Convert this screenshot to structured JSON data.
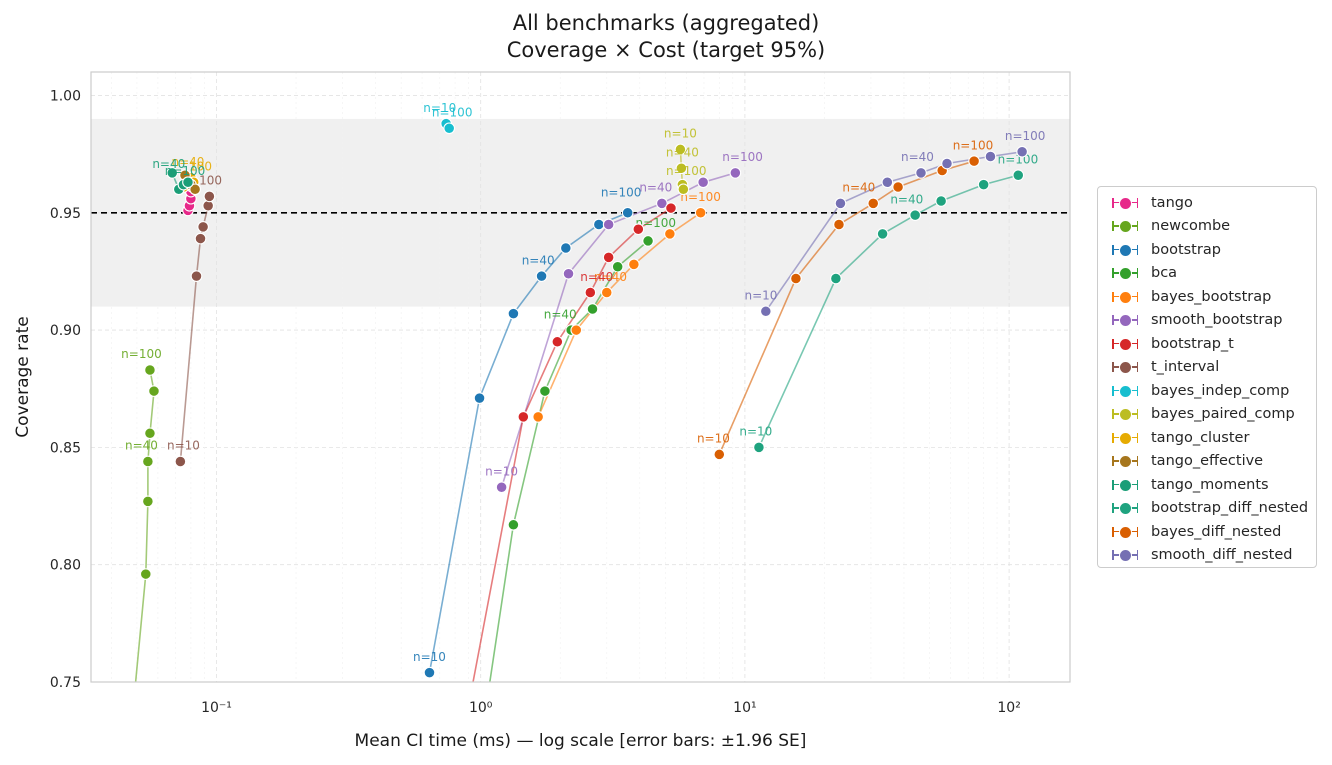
{
  "chart_data": {
    "type": "scatter",
    "title_line1": "All benchmarks (aggregated)",
    "title_line2": "Coverage × Cost (target 95%)",
    "xlabel": "Mean CI time (ms) — log scale  [error bars: ±1.96 SE]",
    "ylabel": "Coverage rate",
    "xscale": "log",
    "xlim": [
      0.0335,
      170
    ],
    "ylim": [
      0.75,
      1.01
    ],
    "x_ticks": [
      {
        "v": 0.1,
        "label": "10⁻¹"
      },
      {
        "v": 1,
        "label": "10⁰"
      },
      {
        "v": 10,
        "label": "10¹"
      },
      {
        "v": 100,
        "label": "10²"
      }
    ],
    "y_ticks": [
      0.75,
      0.8,
      0.85,
      0.9,
      0.95,
      1.0
    ],
    "y_tick_labels": [
      "0.75",
      "0.80",
      "0.85",
      "0.90",
      "0.95",
      "1.00"
    ],
    "target_line": 0.95,
    "band": [
      0.91,
      0.99
    ],
    "grid": true,
    "legend_position": "right",
    "series": [
      {
        "name": "tango",
        "color": "#e7298a",
        "points": [
          [
            0.078,
            0.951
          ],
          [
            0.079,
            0.953
          ],
          [
            0.08,
            0.956
          ],
          [
            0.08,
            0.959
          ],
          [
            0.081,
            0.961
          ]
        ],
        "labels": []
      },
      {
        "name": "newcombe",
        "color": "#66a61e",
        "points": [
          [
            0.048,
            0.735
          ],
          [
            0.054,
            0.796
          ],
          [
            0.055,
            0.827
          ],
          [
            0.055,
            0.844
          ],
          [
            0.056,
            0.856
          ],
          [
            0.058,
            0.874
          ],
          [
            0.056,
            0.883
          ]
        ],
        "labels": [
          {
            "text": "n=40",
            "x": 0.052,
            "y": 0.849
          },
          {
            "text": "n=100",
            "x": 0.052,
            "y": 0.888
          }
        ]
      },
      {
        "name": "bootstrap",
        "color": "#1f78b4",
        "points": [
          [
            0.64,
            0.754
          ],
          [
            0.99,
            0.871
          ],
          [
            1.33,
            0.907
          ],
          [
            1.7,
            0.923
          ],
          [
            2.1,
            0.935
          ],
          [
            2.8,
            0.945
          ],
          [
            3.6,
            0.95
          ]
        ],
        "labels": [
          {
            "text": "n=10",
            "x": 0.64,
            "y": 0.759
          },
          {
            "text": "n=40",
            "x": 1.65,
            "y": 0.928
          },
          {
            "text": "n=100",
            "x": 3.4,
            "y": 0.957
          }
        ]
      },
      {
        "name": "bca",
        "color": "#33a02c",
        "points": [
          [
            1.05,
            0.74
          ],
          [
            1.33,
            0.817
          ],
          [
            1.75,
            0.874
          ],
          [
            2.2,
            0.9
          ],
          [
            2.65,
            0.909
          ],
          [
            3.3,
            0.927
          ],
          [
            4.3,
            0.938
          ]
        ],
        "labels": [
          {
            "text": "n=40",
            "x": 2.0,
            "y": 0.905
          },
          {
            "text": "n=100",
            "x": 4.6,
            "y": 0.944
          }
        ]
      },
      {
        "name": "bayes_bootstrap",
        "color": "#ff7f0e",
        "points": [
          [
            1.65,
            0.863
          ],
          [
            2.3,
            0.9
          ],
          [
            3.0,
            0.916
          ],
          [
            3.8,
            0.928
          ],
          [
            5.2,
            0.941
          ],
          [
            6.8,
            0.95
          ]
        ],
        "labels": [
          {
            "text": "n=40",
            "x": 3.1,
            "y": 0.921
          },
          {
            "text": "n=100",
            "x": 6.8,
            "y": 0.955
          }
        ]
      },
      {
        "name": "smooth_bootstrap",
        "color": "#9467bd",
        "points": [
          [
            1.2,
            0.833
          ],
          [
            2.15,
            0.924
          ],
          [
            3.05,
            0.945
          ],
          [
            4.85,
            0.954
          ],
          [
            6.95,
            0.963
          ],
          [
            9.2,
            0.967
          ]
        ],
        "labels": [
          {
            "text": "n=10",
            "x": 1.2,
            "y": 0.838
          },
          {
            "text": "n=40",
            "x": 4.6,
            "y": 0.959
          },
          {
            "text": "n=100",
            "x": 9.8,
            "y": 0.972
          }
        ]
      },
      {
        "name": "bootstrap_t",
        "color": "#d62728",
        "points": [
          [
            0.9,
            0.74
          ],
          [
            1.45,
            0.863
          ],
          [
            1.95,
            0.895
          ],
          [
            2.6,
            0.916
          ],
          [
            3.05,
            0.931
          ],
          [
            3.95,
            0.943
          ],
          [
            5.25,
            0.952
          ]
        ],
        "labels": [
          {
            "text": "n=40",
            "x": 2.75,
            "y": 0.921
          }
        ]
      },
      {
        "name": "t_interval",
        "color": "#8c564b",
        "points": [
          [
            0.073,
            0.844
          ],
          [
            0.084,
            0.923
          ],
          [
            0.087,
            0.939
          ],
          [
            0.089,
            0.944
          ],
          [
            0.093,
            0.953
          ],
          [
            0.094,
            0.957
          ]
        ],
        "labels": [
          {
            "text": "n=10",
            "x": 0.075,
            "y": 0.849
          },
          {
            "text": "100",
            "x": 0.095,
            "y": 0.962
          }
        ]
      },
      {
        "name": "bayes_indep_comp",
        "color": "#17becf",
        "points": [
          [
            0.74,
            0.988
          ],
          [
            0.76,
            0.986
          ]
        ],
        "labels": [
          {
            "text": "n=10",
            "x": 0.7,
            "y": 0.993
          },
          {
            "text": "n=100",
            "x": 0.78,
            "y": 0.991
          }
        ]
      },
      {
        "name": "bayes_paired_comp",
        "color": "#bcbd22",
        "points": [
          [
            5.7,
            0.977
          ],
          [
            5.75,
            0.969
          ],
          [
            5.8,
            0.962
          ],
          [
            5.85,
            0.96
          ]
        ],
        "labels": [
          {
            "text": "n=10",
            "x": 5.7,
            "y": 0.982
          },
          {
            "text": "n=40",
            "x": 5.8,
            "y": 0.974
          },
          {
            "text": "n=100",
            "x": 6.0,
            "y": 0.966
          }
        ]
      },
      {
        "name": "tango_cluster",
        "color": "#e6ab02",
        "points": [
          [
            0.075,
            0.961
          ],
          [
            0.078,
            0.963
          ],
          [
            0.08,
            0.965
          ],
          [
            0.082,
            0.963
          ]
        ],
        "labels": [
          {
            "text": "n=40",
            "x": 0.078,
            "y": 0.97
          },
          {
            "text": "100",
            "x": 0.087,
            "y": 0.968
          }
        ]
      },
      {
        "name": "tango_effective",
        "color": "#a6761d",
        "points": [
          [
            0.076,
            0.966
          ],
          [
            0.08,
            0.962
          ],
          [
            0.083,
            0.96
          ]
        ],
        "labels": []
      },
      {
        "name": "tango_moments",
        "color": "#1b9e77",
        "points": [
          [
            0.068,
            0.967
          ],
          [
            0.072,
            0.96
          ],
          [
            0.075,
            0.962
          ],
          [
            0.078,
            0.963
          ]
        ],
        "labels": [
          {
            "text": "n=40",
            "x": 0.066,
            "y": 0.969
          },
          {
            "text": "n=100",
            "x": 0.076,
            "y": 0.966
          }
        ]
      },
      {
        "name": "bootstrap_diff_nested",
        "color": "#1fa37f",
        "points": [
          [
            11.3,
            0.85
          ],
          [
            22.1,
            0.922
          ],
          [
            33.2,
            0.941
          ],
          [
            44.1,
            0.949
          ],
          [
            55.3,
            0.955
          ],
          [
            80.1,
            0.962
          ],
          [
            108.3,
            0.966
          ]
        ],
        "labels": [
          {
            "text": "n=10",
            "x": 11.0,
            "y": 0.855
          },
          {
            "text": "n=40",
            "x": 41.0,
            "y": 0.954
          },
          {
            "text": "n=100",
            "x": 108.0,
            "y": 0.971
          }
        ]
      },
      {
        "name": "bayes_diff_nested",
        "color": "#d95f02",
        "points": [
          [
            8.0,
            0.847
          ],
          [
            15.6,
            0.922
          ],
          [
            22.7,
            0.945
          ],
          [
            30.6,
            0.954
          ],
          [
            38.0,
            0.961
          ],
          [
            55.8,
            0.968
          ],
          [
            73.7,
            0.972
          ]
        ],
        "labels": [
          {
            "text": "n=10",
            "x": 7.6,
            "y": 0.852
          },
          {
            "text": "n=40",
            "x": 27.0,
            "y": 0.959
          },
          {
            "text": "n=100",
            "x": 73.0,
            "y": 0.977
          }
        ]
      },
      {
        "name": "smooth_diff_nested",
        "color": "#7570b3",
        "points": [
          [
            12.0,
            0.908
          ],
          [
            23.0,
            0.954
          ],
          [
            34.6,
            0.963
          ],
          [
            46.4,
            0.967
          ],
          [
            58.2,
            0.971
          ],
          [
            85.0,
            0.974
          ],
          [
            112.0,
            0.976
          ]
        ],
        "labels": [
          {
            "text": "n=10",
            "x": 11.5,
            "y": 0.913
          },
          {
            "text": "n=40",
            "x": 45.0,
            "y": 0.972
          },
          {
            "text": "n=100",
            "x": 115.0,
            "y": 0.981
          }
        ]
      }
    ]
  }
}
